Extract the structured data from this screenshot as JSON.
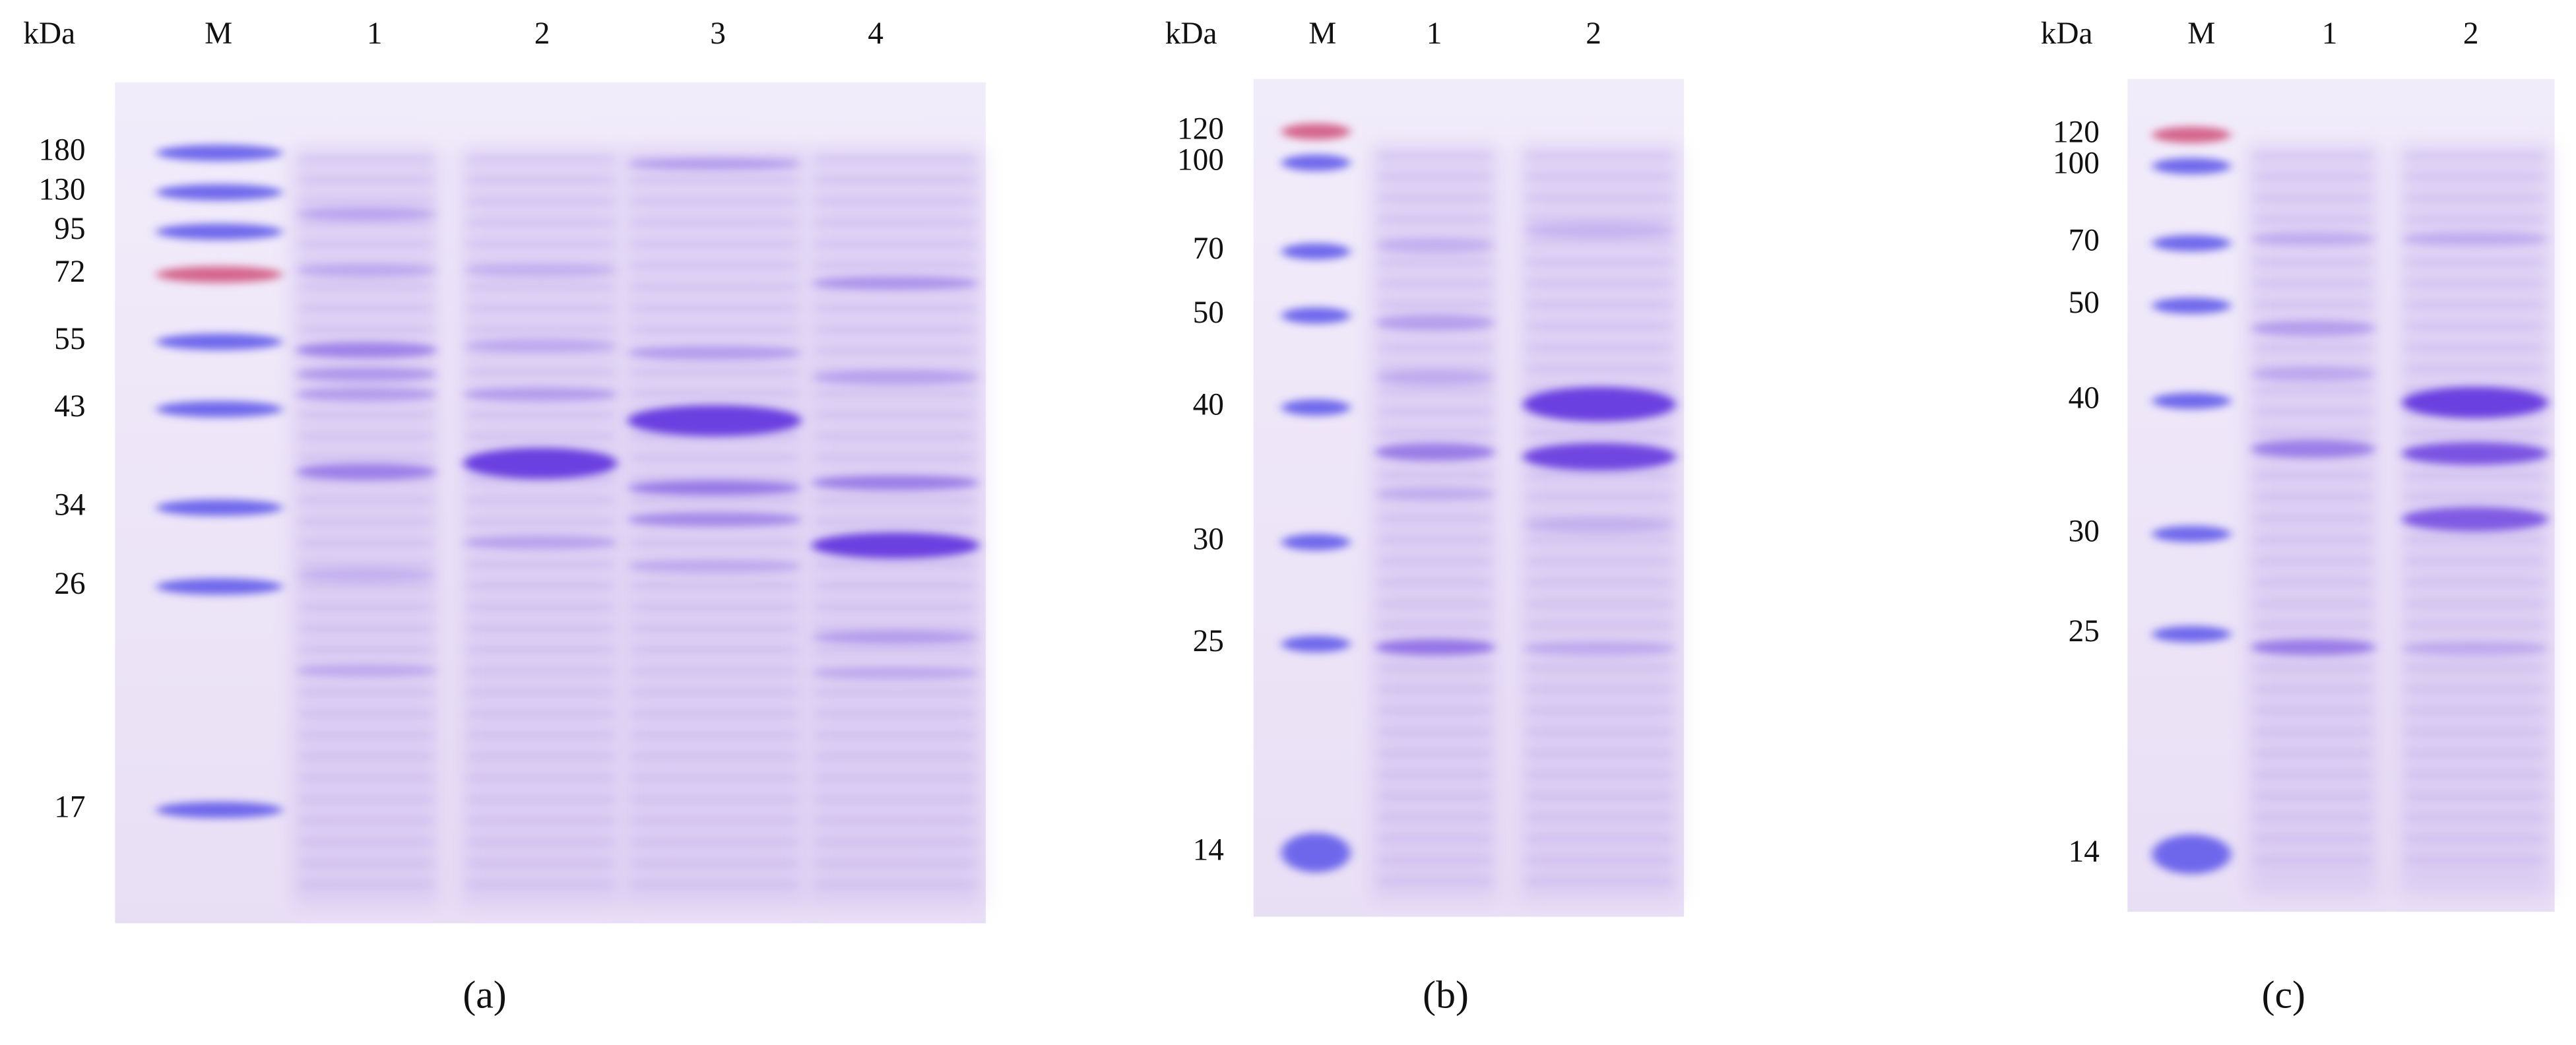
{
  "panels": [
    {
      "unit": "kDa",
      "lanes": [
        "M",
        "1",
        "2",
        "3",
        "4"
      ],
      "markers": [
        180,
        130,
        95,
        72,
        55,
        43,
        34,
        26,
        17
      ],
      "caption": "(a)"
    },
    {
      "unit": "kDa",
      "lanes": [
        "M",
        "1",
        "2"
      ],
      "markers": [
        120,
        100,
        70,
        50,
        40,
        30,
        25,
        14
      ],
      "caption": "(b)"
    },
    {
      "unit": "kDa",
      "lanes": [
        "M",
        "1",
        "2"
      ],
      "markers": [
        120,
        100,
        70,
        50,
        40,
        30,
        25,
        14
      ],
      "caption": "(c)"
    }
  ]
}
